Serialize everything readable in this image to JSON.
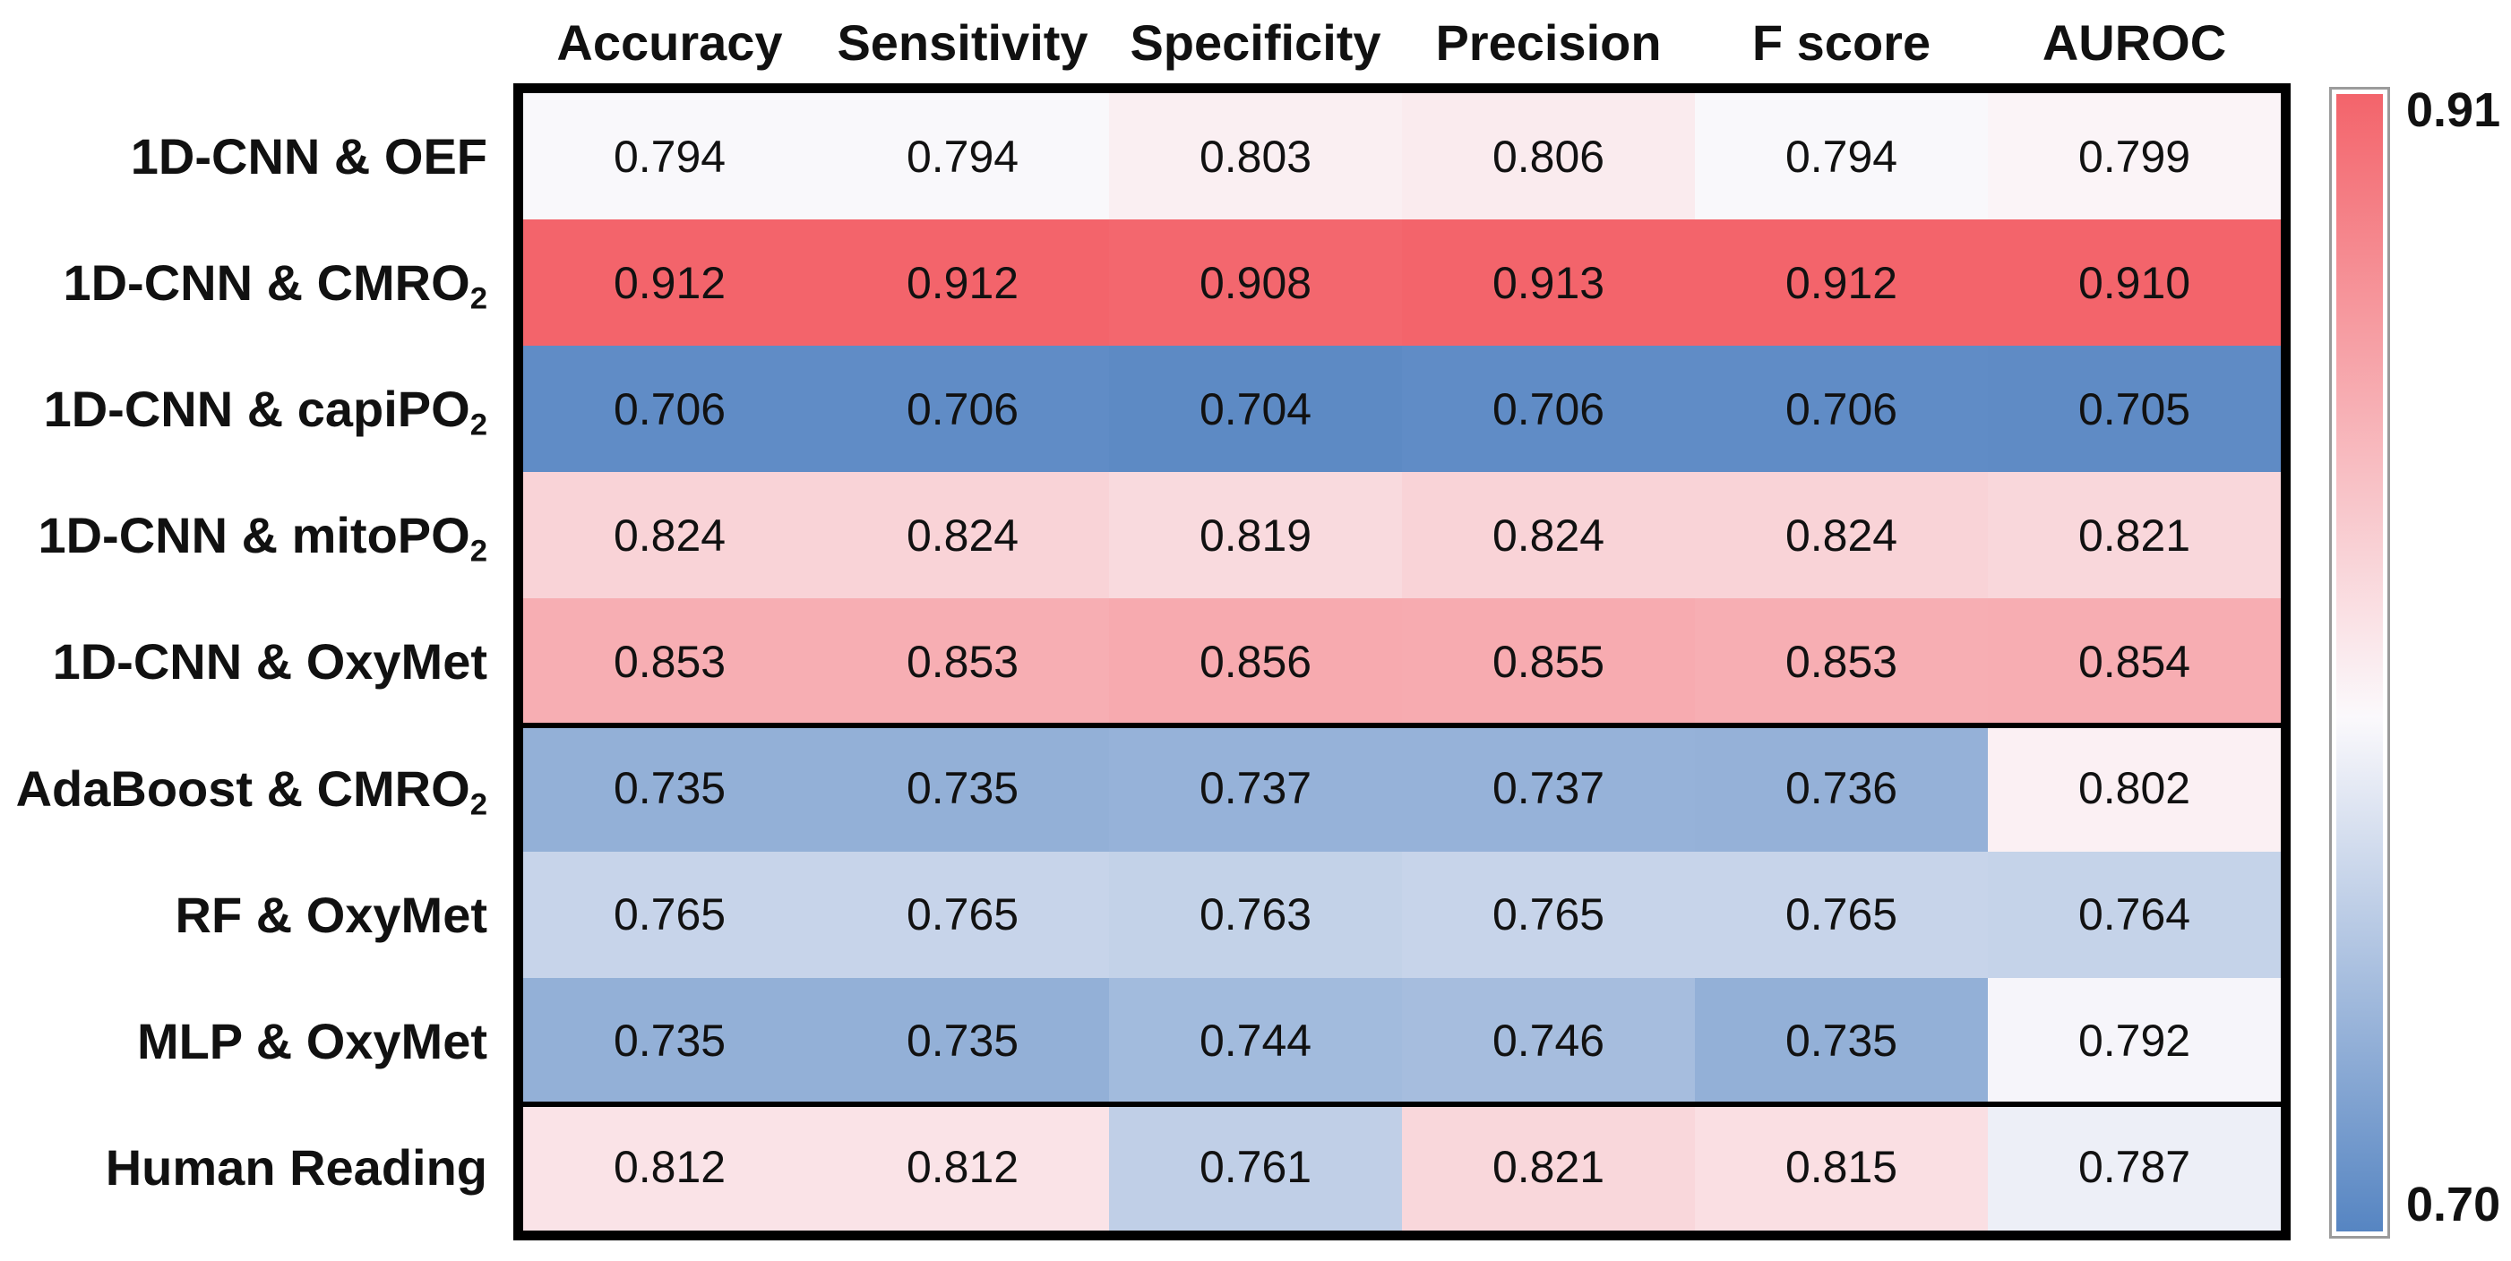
{
  "colors": {
    "background": "#ffffff",
    "text": "#111111",
    "table_border": "#000000",
    "colorbar_border": "#9b9b9b"
  },
  "chart_data": {
    "type": "heatmap",
    "title": "",
    "xlabel": "",
    "ylabel": "",
    "grid": "off",
    "legend_position": "right-colorbar",
    "columns": [
      "Accuracy",
      "Sensitivity",
      "Specificity",
      "Precision",
      "F score",
      "AUROC"
    ],
    "rows": [
      {
        "label": "1D-CNN & OEF",
        "label_subscript": "",
        "values": [
          0.794,
          0.794,
          0.803,
          0.806,
          0.794,
          0.799
        ]
      },
      {
        "label": "1D-CNN & CMRO",
        "label_subscript": "2",
        "values": [
          0.912,
          0.912,
          0.908,
          0.913,
          0.912,
          0.91
        ]
      },
      {
        "label": "1D-CNN & capiPO",
        "label_subscript": "2",
        "values": [
          0.706,
          0.706,
          0.704,
          0.706,
          0.706,
          0.705
        ]
      },
      {
        "label": "1D-CNN & mitoPO",
        "label_subscript": "2",
        "values": [
          0.824,
          0.824,
          0.819,
          0.824,
          0.824,
          0.821
        ]
      },
      {
        "label": "1D-CNN & OxyMet",
        "label_subscript": "",
        "values": [
          0.853,
          0.853,
          0.856,
          0.855,
          0.853,
          0.854
        ]
      },
      {
        "label": "AdaBoost & CMRO",
        "label_subscript": "2",
        "values": [
          0.735,
          0.735,
          0.737,
          0.737,
          0.736,
          0.802
        ]
      },
      {
        "label": "RF & OxyMet",
        "label_subscript": "",
        "values": [
          0.765,
          0.765,
          0.763,
          0.765,
          0.765,
          0.764
        ]
      },
      {
        "label": "MLP & OxyMet",
        "label_subscript": "",
        "values": [
          0.735,
          0.735,
          0.744,
          0.746,
          0.735,
          0.792
        ]
      },
      {
        "label": "Human Reading",
        "label_subscript": "",
        "values": [
          0.812,
          0.812,
          0.761,
          0.821,
          0.815,
          0.787
        ]
      }
    ],
    "value_decimals": 3,
    "group_separators_after_row_index": [
      4,
      7
    ],
    "colorscale": {
      "min": 0.7,
      "max": 0.91,
      "midpoint": 0.795,
      "low_color": "#5685C2",
      "mid_color": "#FBF9FC",
      "high_color": "#F3646B"
    },
    "colorbar": {
      "top_label": "0.91",
      "bottom_label": "0.70"
    }
  }
}
